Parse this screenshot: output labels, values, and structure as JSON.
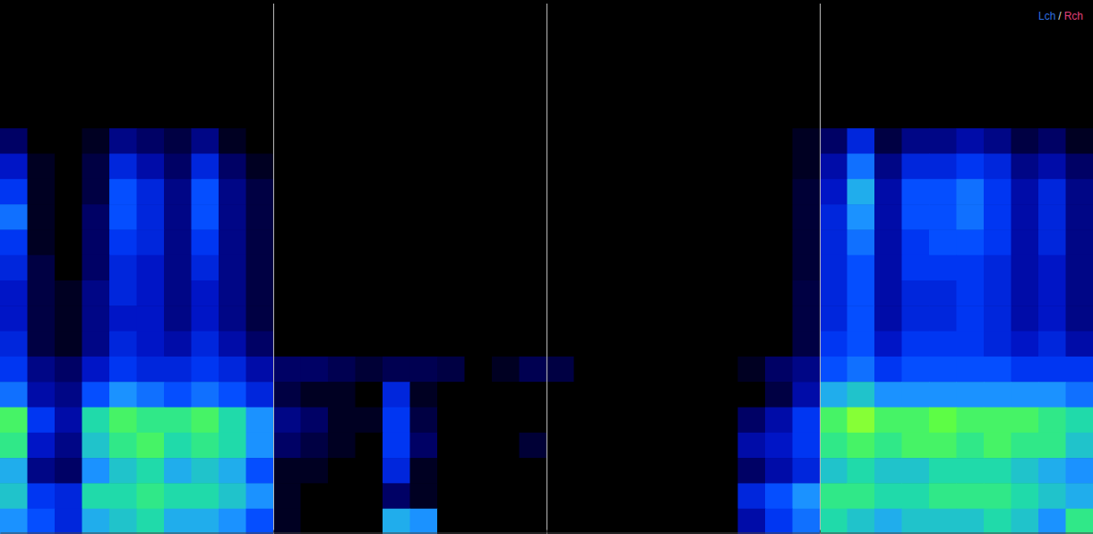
{
  "chart_data": {
    "type": "heatmap",
    "annotations": [
      "Lch",
      "/",
      "Rch"
    ],
    "xlim": [
      0,
      4
    ],
    "xticks": [
      1,
      2,
      3
    ],
    "grid": true,
    "tick_labels": false,
    "color_range": [
      0,
      100
    ],
    "cells": [
      [
        0,
        0,
        0,
        0,
        0,
        0,
        0,
        0,
        0,
        0,
        0,
        0,
        0,
        0,
        0,
        0,
        0,
        0,
        0,
        0,
        0,
        0,
        0,
        0,
        0,
        0,
        0,
        0,
        0,
        0,
        0,
        0,
        0,
        0,
        0,
        0,
        0,
        0,
        0,
        0
      ],
      [
        0,
        0,
        0,
        0,
        0,
        0,
        0,
        0,
        0,
        0,
        0,
        0,
        0,
        0,
        0,
        0,
        0,
        0,
        0,
        0,
        0,
        0,
        0,
        0,
        0,
        0,
        0,
        0,
        0,
        0,
        0,
        0,
        0,
        0,
        0,
        0,
        0,
        0,
        0,
        0
      ],
      [
        0,
        0,
        0,
        0,
        0,
        0,
        0,
        0,
        0,
        0,
        0,
        0,
        0,
        0,
        0,
        0,
        0,
        0,
        0,
        0,
        0,
        0,
        0,
        0,
        0,
        0,
        0,
        0,
        0,
        0,
        0,
        0,
        0,
        0,
        0,
        0,
        0,
        0,
        0,
        0
      ],
      [
        0,
        0,
        0,
        0,
        0,
        0,
        0,
        0,
        0,
        0,
        0,
        0,
        0,
        0,
        0,
        0,
        0,
        0,
        0,
        0,
        0,
        0,
        0,
        0,
        0,
        0,
        0,
        0,
        0,
        0,
        0,
        0,
        0,
        0,
        0,
        0,
        0,
        0,
        0,
        0
      ],
      [
        15,
        0,
        0,
        5,
        20,
        15,
        10,
        20,
        5,
        0,
        0,
        0,
        0,
        0,
        0,
        0,
        0,
        0,
        0,
        0,
        0,
        0,
        0,
        0,
        0,
        0,
        0,
        0,
        0,
        5,
        15,
        35,
        10,
        20,
        20,
        25,
        20,
        10,
        15,
        5
      ],
      [
        30,
        5,
        0,
        10,
        35,
        25,
        15,
        35,
        15,
        5,
        0,
        0,
        0,
        0,
        0,
        0,
        0,
        0,
        0,
        0,
        0,
        0,
        0,
        0,
        0,
        0,
        0,
        0,
        0,
        5,
        25,
        50,
        20,
        35,
        35,
        40,
        35,
        20,
        25,
        15
      ],
      [
        40,
        5,
        0,
        10,
        45,
        35,
        20,
        45,
        20,
        10,
        0,
        0,
        0,
        0,
        0,
        0,
        0,
        0,
        0,
        0,
        0,
        0,
        0,
        0,
        0,
        0,
        0,
        0,
        0,
        8,
        30,
        60,
        25,
        45,
        45,
        50,
        40,
        25,
        35,
        20
      ],
      [
        50,
        5,
        0,
        15,
        45,
        35,
        20,
        45,
        20,
        10,
        0,
        0,
        0,
        0,
        0,
        0,
        0,
        0,
        0,
        0,
        0,
        0,
        0,
        0,
        0,
        0,
        0,
        0,
        0,
        8,
        35,
        55,
        25,
        45,
        45,
        50,
        40,
        25,
        35,
        20
      ],
      [
        40,
        5,
        0,
        15,
        40,
        35,
        20,
        40,
        20,
        10,
        0,
        0,
        0,
        0,
        0,
        0,
        0,
        0,
        0,
        0,
        0,
        0,
        0,
        0,
        0,
        0,
        0,
        0,
        0,
        8,
        35,
        50,
        25,
        40,
        45,
        45,
        40,
        25,
        35,
        20
      ],
      [
        35,
        10,
        0,
        15,
        35,
        30,
        20,
        35,
        20,
        10,
        0,
        0,
        0,
        0,
        0,
        0,
        0,
        0,
        0,
        0,
        0,
        0,
        0,
        0,
        0,
        0,
        0,
        0,
        0,
        8,
        35,
        45,
        25,
        40,
        40,
        40,
        35,
        25,
        30,
        20
      ],
      [
        30,
        10,
        5,
        20,
        35,
        30,
        20,
        30,
        20,
        10,
        0,
        0,
        0,
        0,
        0,
        0,
        0,
        0,
        0,
        0,
        0,
        0,
        0,
        0,
        0,
        0,
        0,
        0,
        0,
        10,
        35,
        45,
        25,
        35,
        35,
        40,
        35,
        25,
        30,
        20
      ],
      [
        30,
        10,
        5,
        20,
        30,
        30,
        20,
        30,
        20,
        10,
        0,
        0,
        0,
        0,
        0,
        0,
        0,
        0,
        0,
        0,
        0,
        0,
        0,
        0,
        0,
        0,
        0,
        0,
        0,
        10,
        35,
        45,
        25,
        35,
        35,
        40,
        35,
        25,
        30,
        20
      ],
      [
        35,
        10,
        5,
        20,
        35,
        30,
        25,
        35,
        25,
        15,
        0,
        0,
        0,
        0,
        0,
        0,
        0,
        0,
        0,
        0,
        0,
        0,
        0,
        0,
        0,
        0,
        0,
        0,
        0,
        10,
        40,
        45,
        30,
        40,
        40,
        40,
        35,
        30,
        35,
        25
      ],
      [
        40,
        20,
        15,
        30,
        40,
        35,
        35,
        40,
        35,
        25,
        15,
        15,
        12,
        8,
        12,
        12,
        10,
        0,
        5,
        12,
        10,
        0,
        0,
        0,
        0,
        0,
        0,
        5,
        15,
        20,
        45,
        50,
        40,
        45,
        45,
        45,
        45,
        40,
        40,
        40
      ],
      [
        50,
        25,
        20,
        45,
        55,
        50,
        45,
        50,
        45,
        35,
        10,
        5,
        5,
        0,
        35,
        5,
        0,
        0,
        0,
        0,
        0,
        0,
        0,
        0,
        0,
        0,
        0,
        0,
        10,
        25,
        60,
        65,
        55,
        55,
        55,
        55,
        55,
        55,
        55,
        50
      ],
      [
        80,
        40,
        25,
        70,
        80,
        75,
        75,
        80,
        70,
        55,
        20,
        15,
        5,
        5,
        40,
        10,
        0,
        0,
        0,
        0,
        0,
        0,
        0,
        0,
        0,
        0,
        0,
        15,
        25,
        40,
        80,
        90,
        80,
        80,
        85,
        80,
        80,
        80,
        75,
        70
      ],
      [
        75,
        30,
        20,
        65,
        75,
        80,
        70,
        75,
        70,
        55,
        15,
        10,
        5,
        0,
        40,
        15,
        0,
        0,
        0,
        8,
        0,
        0,
        0,
        0,
        0,
        0,
        0,
        25,
        30,
        40,
        75,
        80,
        75,
        80,
        80,
        75,
        80,
        75,
        75,
        65
      ],
      [
        60,
        20,
        15,
        55,
        65,
        70,
        60,
        65,
        60,
        45,
        5,
        5,
        0,
        0,
        35,
        5,
        0,
        0,
        0,
        0,
        0,
        0,
        0,
        0,
        0,
        0,
        0,
        15,
        25,
        35,
        65,
        70,
        65,
        65,
        70,
        70,
        70,
        65,
        60,
        55
      ],
      [
        65,
        40,
        35,
        70,
        70,
        75,
        70,
        70,
        65,
        55,
        5,
        0,
        0,
        0,
        15,
        5,
        0,
        0,
        0,
        0,
        0,
        0,
        0,
        0,
        0,
        0,
        0,
        35,
        45,
        55,
        75,
        75,
        70,
        70,
        75,
        75,
        75,
        70,
        65,
        60
      ],
      [
        55,
        45,
        35,
        60,
        65,
        70,
        60,
        60,
        55,
        45,
        5,
        0,
        0,
        0,
        60,
        55,
        0,
        0,
        0,
        0,
        0,
        0,
        0,
        0,
        0,
        0,
        0,
        25,
        40,
        50,
        70,
        65,
        60,
        65,
        65,
        65,
        70,
        65,
        55,
        75
      ]
    ]
  }
}
